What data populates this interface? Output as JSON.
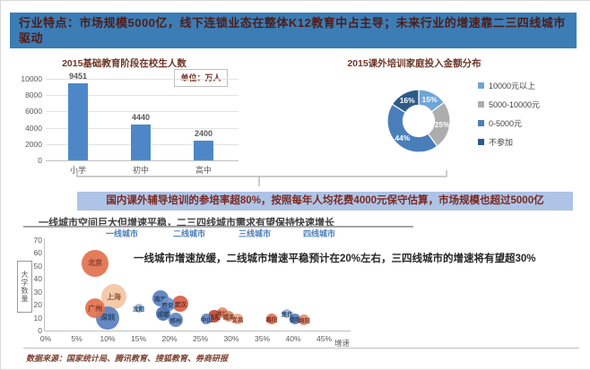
{
  "page": {
    "title": "行业特点：市场规模5000亿，线下连锁业态在整体K12教育中占主导；未来行业的增速靠二三四线城市驱动",
    "highlight": "国内课外辅导培训的参培率超80%，按照每年人均花费4000元保守估算，市场规模也超过5000亿",
    "source": "数据来源：国家统计局、腾讯教育、搜狐教育、券商研报"
  },
  "colors": {
    "title_bar_bg": "#3c7db6",
    "title_text": "#4f1c16",
    "bar_fill": "#4e87c7",
    "highlight_bg": "#aec4e6",
    "maroon_text": "#7b2920"
  },
  "chart_data": [
    {
      "type": "bar",
      "title": "2015基础教育阶段在校生人数",
      "unit_label": "单位：万人",
      "categories": [
        "小学",
        "初中",
        "高中"
      ],
      "values": [
        9451,
        4440,
        2400
      ],
      "ylim": [
        0,
        10000
      ],
      "ytick_step": 2000,
      "grid": true,
      "bar_color": "#4e87c7"
    },
    {
      "type": "pie",
      "subtype": "donut",
      "title": "2015课外培训家庭投入金额分布",
      "labels": [
        "10000元以上",
        "5000-10000元",
        "0-5000元",
        "不参加"
      ],
      "values": [
        15,
        25,
        44,
        16
      ],
      "value_labels": [
        "15%",
        "25%",
        "44%",
        "16%"
      ],
      "colors": [
        "#6fa5d8",
        "#adadad",
        "#4a7ebb",
        "#2e5a87"
      ],
      "legend_position": "right"
    },
    {
      "type": "scatter",
      "subtype": "bubble",
      "title": "一线城市空间巨大但增速平稳，二三四线城市需求有望保持快速增长",
      "annotation": "一线城市增速放缓，二线城市增速平稳预计在20%左右，三四线城市的增速将有望超30%",
      "xlabel": "增速",
      "ylabel": "大学数量",
      "xlim": [
        0,
        45
      ],
      "xtick_step": 5,
      "xtick_suffix": "%",
      "ylim": [
        0,
        70
      ],
      "ytick_step": 10,
      "tiers": [
        "一线城市",
        "二线城市",
        "三线城市",
        "四线城市"
      ],
      "points": [
        {
          "name": "北京",
          "x": 8,
          "y": 52,
          "r": 15,
          "color": "#e2734e",
          "tc": "#7b2d20"
        },
        {
          "name": "上海",
          "x": 11,
          "y": 26,
          "r": 14,
          "color": "#f4c6a5",
          "tc": "#8b4a2e"
        },
        {
          "name": "广州",
          "x": 8,
          "y": 17,
          "r": 11,
          "color": "#e2734e",
          "tc": "#7b2d20"
        },
        {
          "name": "深圳",
          "x": 10,
          "y": 10,
          "r": 13,
          "color": "#5b7fbf",
          "tc": "#16365c"
        },
        {
          "name": "沈阳",
          "x": 15,
          "y": 17,
          "r": 5,
          "color": "#9fb8d8",
          "tc": "#16365c"
        },
        {
          "name": "南京",
          "x": 18.5,
          "y": 25,
          "r": 9,
          "color": "#5b7fbf",
          "tc": "#16365c"
        },
        {
          "name": "西安",
          "x": 19.7,
          "y": 20,
          "r": 8,
          "color": "#7293c9",
          "tc": "#16365c"
        },
        {
          "name": "武汉",
          "x": 21.8,
          "y": 21,
          "r": 9,
          "color": "#d95f45",
          "tc": "#5e1c10"
        },
        {
          "name": "成都",
          "x": 19,
          "y": 13,
          "r": 8,
          "color": "#4f74b3",
          "tc": "#16365c"
        },
        {
          "name": "郑州",
          "x": 21,
          "y": 8,
          "r": 8,
          "color": "#6487be",
          "tc": "#16365c"
        },
        {
          "name": "中山",
          "x": 26,
          "y": 9,
          "r": 6,
          "color": "#6487be",
          "tc": "#16365c"
        },
        {
          "name": "洛阳",
          "x": 27.3,
          "y": 11,
          "r": 7,
          "color": "#c34a36",
          "tc": "#5e1c10"
        },
        {
          "name": "潍坊",
          "x": 28.5,
          "y": 14,
          "r": 6,
          "color": "#e2906b",
          "tc": "#7b2d20"
        },
        {
          "name": "威海",
          "x": 29.6,
          "y": 11,
          "r": 6,
          "color": "#d98c6a",
          "tc": "#7b2d20"
        },
        {
          "name": "宜昌",
          "x": 31,
          "y": 9,
          "r": 6,
          "color": "#eba988",
          "tc": "#7b2d20"
        },
        {
          "name": "襄阳",
          "x": 36.5,
          "y": 9,
          "r": 6,
          "color": "#e2734e",
          "tc": "#7b2d20"
        },
        {
          "name": "焦作",
          "x": 39,
          "y": 13,
          "r": 5,
          "color": "#9fb8d8",
          "tc": "#16365c"
        },
        {
          "name": "德阳",
          "x": 40.3,
          "y": 9,
          "r": 6,
          "color": "#5b7fbf",
          "tc": "#16365c"
        },
        {
          "name": "绵阳",
          "x": 41.8,
          "y": 8,
          "r": 6,
          "color": "#e2906b",
          "tc": "#7b2d20"
        }
      ]
    }
  ]
}
